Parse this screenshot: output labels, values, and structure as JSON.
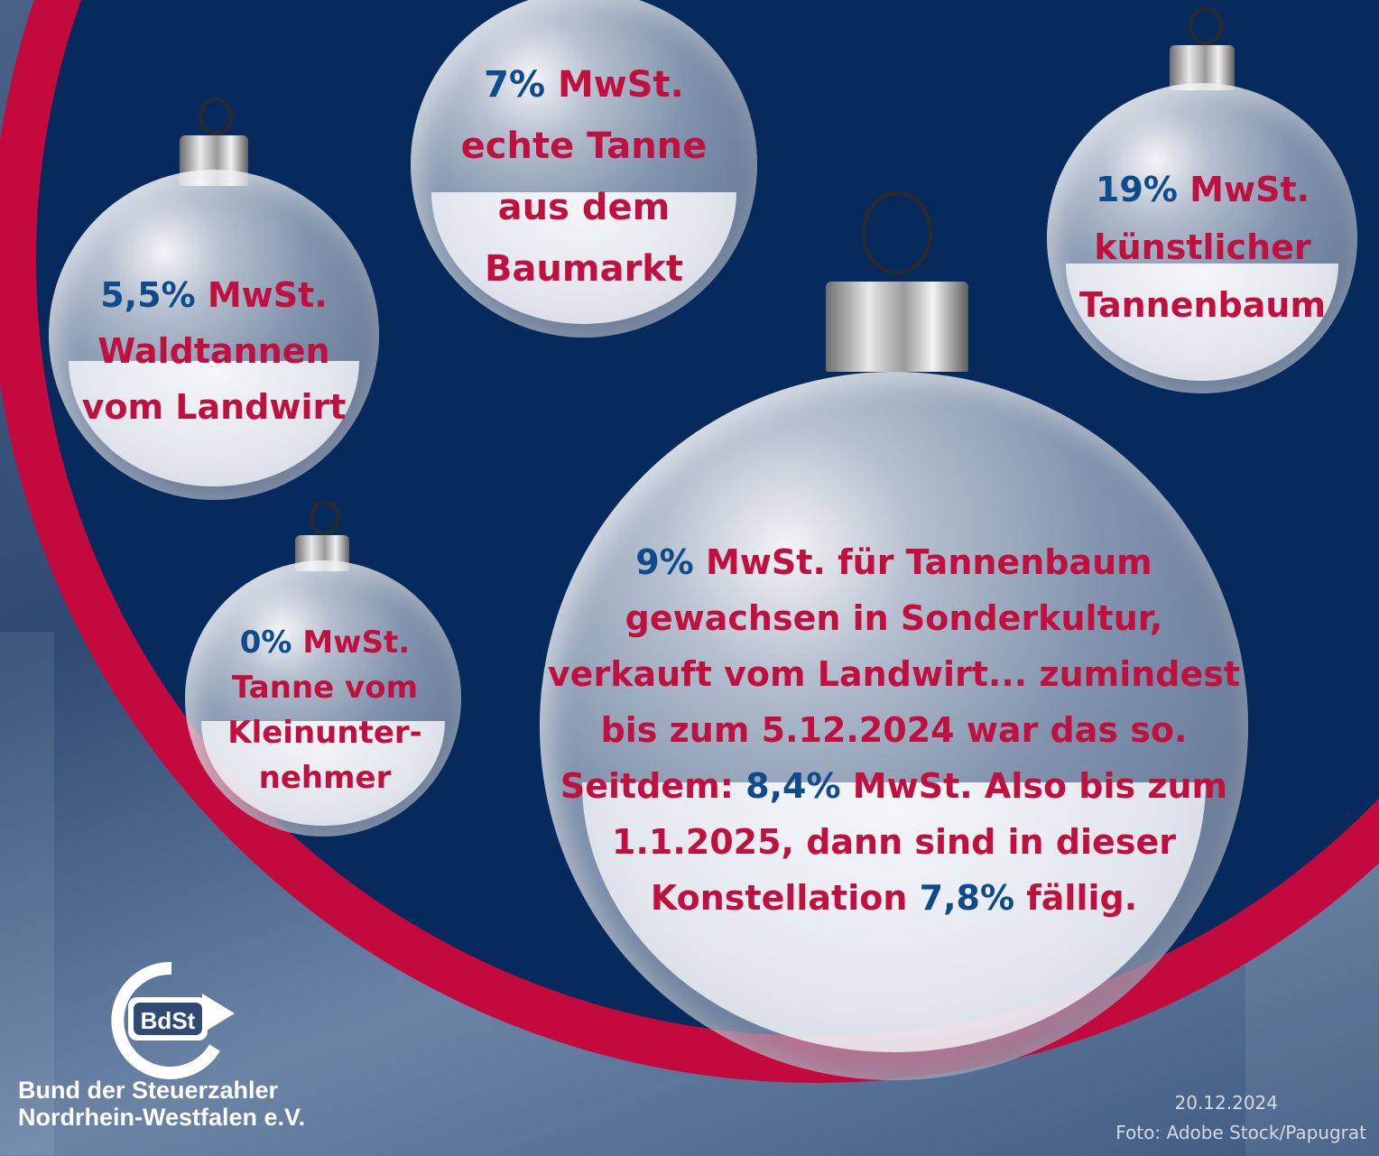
{
  "colors": {
    "red": "#c3093d",
    "navy": "#062a5c",
    "text_red": "#c0103f",
    "text_blue": "#0f4a8a"
  },
  "ornaments": {
    "o1": {
      "rate": "5,5%",
      "label": "MwSt.",
      "lines": [
        "Waldtannen",
        "vom Landwirt"
      ]
    },
    "o2": {
      "rate": "7%",
      "label": "MwSt.",
      "lines": [
        "echte Tanne",
        "aus dem",
        "Baumarkt"
      ]
    },
    "o3": {
      "rate": "19%",
      "label": "MwSt.",
      "lines": [
        "künstlicher",
        "Tannenbaum"
      ]
    },
    "o4": {
      "rate": "0%",
      "label": "MwSt.",
      "lines": [
        "Tanne vom",
        "Kleinunter-",
        "nehmer"
      ]
    },
    "o5": {
      "rate": "9%",
      "label": "MwSt. für Tannenbaum",
      "line2": "gewachsen in Sonderkultur,",
      "line3": "verkauft vom Landwirt... zumindest",
      "line4": "bis zum 5.12.2024 war das so.",
      "line5_pre": "Seitdem:",
      "line5_rate": "8,4%",
      "line5_post": "MwSt. Also bis zum",
      "line6": "1.1.2025, dann sind in dieser",
      "line7_pre": "Konstellation",
      "line7_rate": "7,8%",
      "line7_post": "fällig."
    }
  },
  "logo": {
    "mark": "BdSt",
    "line1": "Bund der Steuerzahler",
    "line2": "Nordrhein-Westfalen e.V."
  },
  "footer": {
    "date": "20.12.2024",
    "credit": "Foto: Adobe Stock/Papugrat"
  }
}
